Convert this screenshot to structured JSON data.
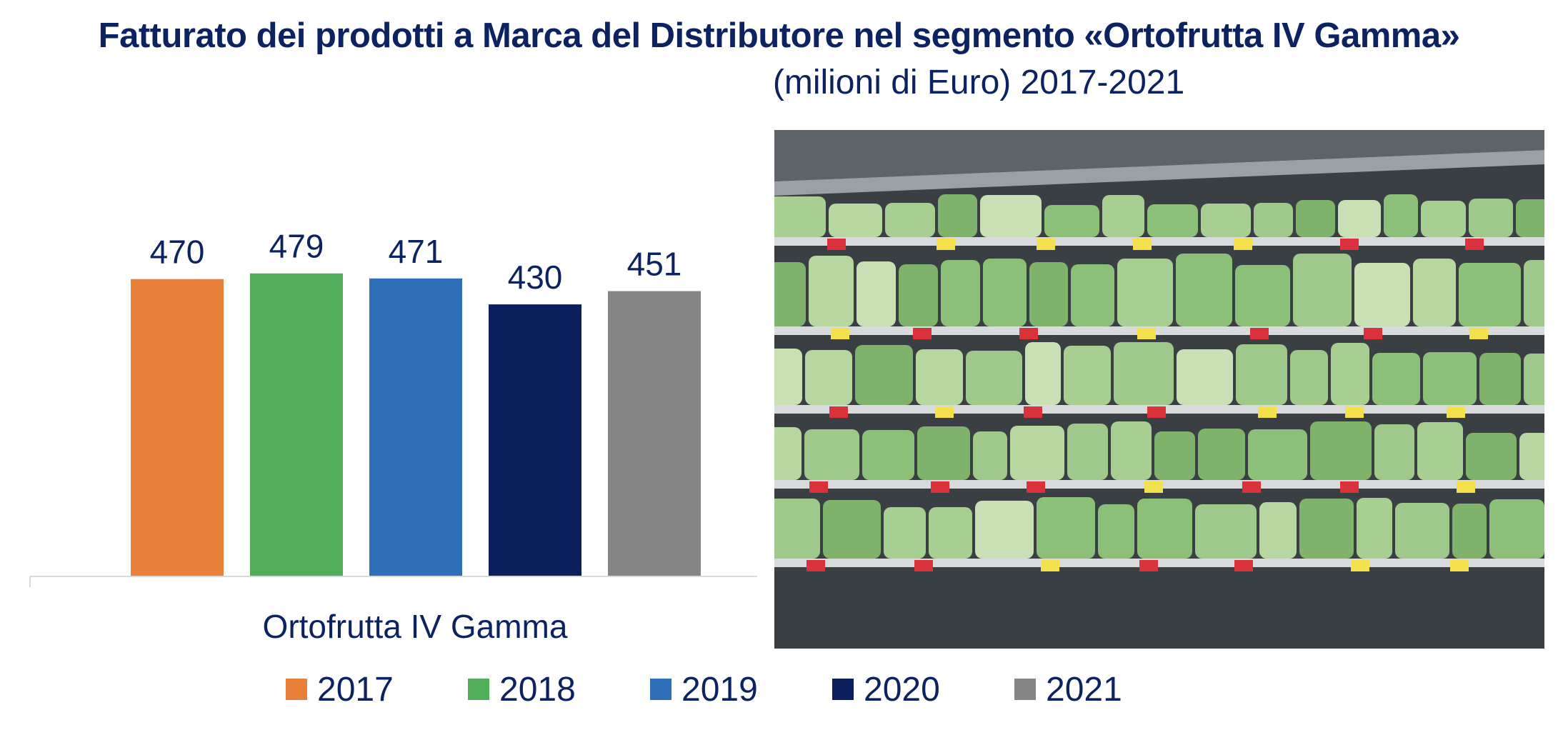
{
  "header": {
    "title": "Fatturato dei prodotti a Marca del Distributore nel segmento «Ortofrutta IV Gamma»",
    "subtitle": "(milioni di Euro) 2017-2021"
  },
  "colors": {
    "2017": "#e8803a",
    "2018": "#4fae57",
    "2019": "#2f6fb8",
    "2020": "#0a1f5c",
    "2021": "#858585",
    "text": "#0d2260"
  },
  "chart_data": {
    "type": "bar",
    "categories": [
      "Ortofrutta IV Gamma"
    ],
    "series": [
      {
        "name": "2017",
        "values": [
          470
        ]
      },
      {
        "name": "2018",
        "values": [
          479
        ]
      },
      {
        "name": "2019",
        "values": [
          471
        ]
      },
      {
        "name": "2020",
        "values": [
          430
        ]
      },
      {
        "name": "2021",
        "values": [
          451
        ]
      }
    ],
    "ylim": [
      0,
      700
    ],
    "grid": false,
    "legend": "bottom",
    "data_labels": true
  },
  "photo": {
    "subject": "supermarket refrigerated shelves with bagged ready-to-eat salads"
  }
}
